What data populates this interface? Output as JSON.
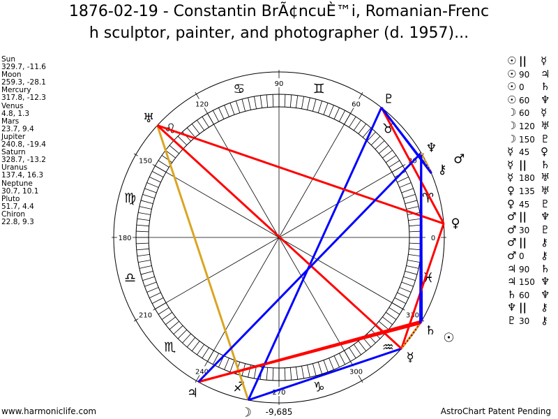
{
  "title_line1": "1876-02-19 - Constantin BrÃ¢ncuÈ™i, Romanian-Frenc",
  "title_line2": "h sculptor, painter, and photographer (d. 1957)...",
  "planets": [
    {
      "name": "Sun",
      "glyph": "☉",
      "coords": "329.7, -11.6",
      "lon": 329.7
    },
    {
      "name": "Moon",
      "glyph": "☽",
      "coords": "259.3, -28.1",
      "lon": 259.3
    },
    {
      "name": "Mercury",
      "glyph": "☿",
      "coords": "317.8, -12.3",
      "lon": 317.8
    },
    {
      "name": "Venus",
      "glyph": "♀",
      "coords": "4.8, 1.3",
      "lon": 4.8
    },
    {
      "name": "Mars",
      "glyph": "♂",
      "coords": "23.7, 9.4",
      "lon": 23.7
    },
    {
      "name": "Jupiter",
      "glyph": "♃",
      "coords": "240.8, -19.4",
      "lon": 240.8
    },
    {
      "name": "Saturn",
      "glyph": "♄",
      "coords": "328.7, -13.2",
      "lon": 328.7
    },
    {
      "name": "Uranus",
      "glyph": "♅",
      "coords": "137.4, 16.3",
      "lon": 137.4
    },
    {
      "name": "Neptune",
      "glyph": "♆",
      "coords": "30.7, 10.1",
      "lon": 30.7
    },
    {
      "name": "Pluto",
      "glyph": "♇",
      "coords": "51.7, 4.4",
      "lon": 51.7
    },
    {
      "name": "Chiron",
      "glyph": "⚷",
      "coords": "22.8, 9.3",
      "lon": 22.8
    }
  ],
  "aspects": [
    {
      "p1": "Sun",
      "aspect": "||",
      "p2": "Mercury",
      "color": "#dd0000"
    },
    {
      "p1": "Sun",
      "aspect": "90",
      "p2": "Jupiter",
      "color": "#ff0000"
    },
    {
      "p1": "Sun",
      "aspect": "0",
      "p2": "Saturn",
      "color": "#ff0000"
    },
    {
      "p1": "Sun",
      "aspect": "60",
      "p2": "Neptune",
      "color": "#0000ff"
    },
    {
      "p1": "Moon",
      "aspect": "60",
      "p2": "Mercury",
      "color": "#0000ff"
    },
    {
      "p1": "Moon",
      "aspect": "120",
      "p2": "Uranus",
      "color": "#daa520"
    },
    {
      "p1": "Moon",
      "aspect": "150",
      "p2": "Pluto",
      "color": "#0000ff"
    },
    {
      "p1": "Mercury",
      "aspect": "45",
      "p2": "Venus",
      "color": "#ff0000"
    },
    {
      "p1": "Mercury",
      "aspect": "||",
      "p2": "Saturn",
      "color": "#daa520"
    },
    {
      "p1": "Mercury",
      "aspect": "180",
      "p2": "Uranus",
      "color": "#ff0000"
    },
    {
      "p1": "Venus",
      "aspect": "135",
      "p2": "Uranus",
      "color": "#ff0000"
    },
    {
      "p1": "Venus",
      "aspect": "45",
      "p2": "Pluto",
      "color": "#ff0000"
    },
    {
      "p1": "Mars",
      "aspect": "||",
      "p2": "Neptune",
      "color": "#daa520"
    },
    {
      "p1": "Mars",
      "aspect": "30",
      "p2": "Pluto",
      "color": "#0000ff"
    },
    {
      "p1": "Mars",
      "aspect": "||",
      "p2": "Chiron",
      "color": "#daa520"
    },
    {
      "p1": "Mars",
      "aspect": "0",
      "p2": "Chiron",
      "color": "#ff0000"
    },
    {
      "p1": "Jupiter",
      "aspect": "90",
      "p2": "Saturn",
      "color": "#ff0000"
    },
    {
      "p1": "Jupiter",
      "aspect": "150",
      "p2": "Neptune",
      "color": "#0000ff"
    },
    {
      "p1": "Saturn",
      "aspect": "60",
      "p2": "Neptune",
      "color": "#0000ff"
    },
    {
      "p1": "Neptune",
      "aspect": "||",
      "p2": "Chiron",
      "color": "#daa520"
    },
    {
      "p1": "Pluto",
      "aspect": "30",
      "p2": "Chiron",
      "color": "#0000ff"
    }
  ],
  "signs": [
    "♈",
    "♉",
    "♊",
    "♋",
    "♌",
    "♍",
    "♎",
    "♏",
    "♐",
    "♑",
    "♒",
    "♓"
  ],
  "degree_labels": [
    "0",
    "30",
    "60",
    "90",
    "120",
    "150",
    "180",
    "210",
    "240",
    "270",
    "300",
    "330"
  ],
  "score": "-9,685",
  "footer_left": "www.harmoniclife.com",
  "footer_right": "AstroChart Patent Pending"
}
